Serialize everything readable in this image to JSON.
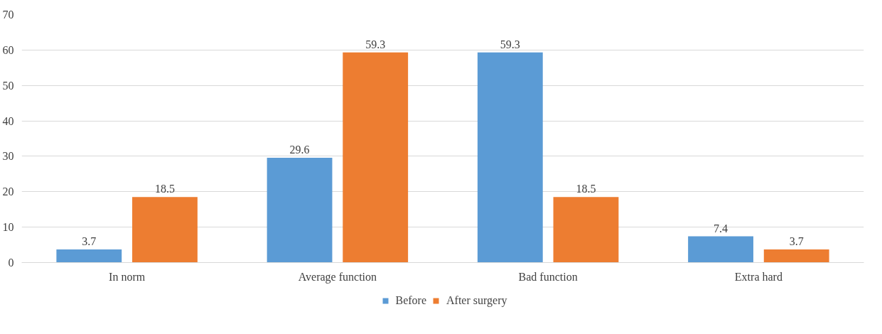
{
  "chart_data": {
    "type": "bar",
    "categories": [
      "In norm",
      "Average function",
      "Bad function",
      "Extra hard"
    ],
    "series": [
      {
        "name": "Before",
        "color": "#5b9bd5",
        "values": [
          3.7,
          29.6,
          59.3,
          7.4
        ]
      },
      {
        "name": "After surgery",
        "color": "#ed7d31",
        "values": [
          18.5,
          59.3,
          18.5,
          3.7
        ]
      }
    ],
    "ylim": [
      0,
      70
    ],
    "yticks": [
      0,
      10,
      20,
      30,
      40,
      50,
      60,
      70
    ],
    "grid": "y",
    "legend": "bottom",
    "data_labels": true
  }
}
